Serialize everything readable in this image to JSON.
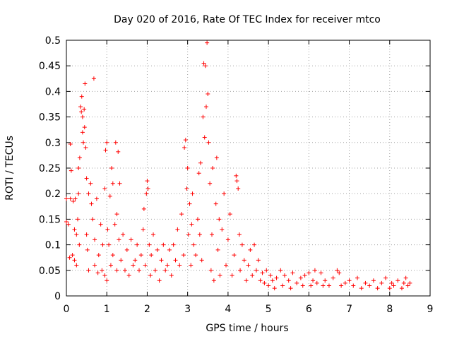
{
  "chart_data": {
    "type": "scatter",
    "title": "Day 020 of 2016, Rate Of TEC Index for receiver mtco",
    "xlabel": "GPS time / hours",
    "ylabel": "ROTI / TECUs",
    "xlim": [
      0,
      9
    ],
    "ylim": [
      0,
      0.5
    ],
    "xticks": [
      0,
      1,
      2,
      3,
      4,
      5,
      6,
      7,
      8,
      9
    ],
    "xtick_labels": [
      "0",
      "1",
      "2",
      "3",
      "4",
      "5",
      "6",
      "7",
      "8",
      "9"
    ],
    "yticks": [
      0,
      0.05,
      0.1,
      0.15,
      0.2,
      0.25,
      0.3,
      0.35,
      0.4,
      0.45,
      0.5
    ],
    "ytick_labels": [
      "0",
      "0.05",
      "0.1",
      "0.15",
      "0.2",
      "0.25",
      "0.3",
      "0.35",
      "0.4",
      "0.45",
      "0.5"
    ],
    "grid": true,
    "marker": "+",
    "color": "#ff0000",
    "series": [
      {
        "name": "ROTI",
        "points": [
          [
            0.0,
            0.19
          ],
          [
            0.0,
            0.145
          ],
          [
            0.05,
            0.14
          ],
          [
            0.08,
            0.075
          ],
          [
            0.1,
            0.297
          ],
          [
            0.1,
            0.19
          ],
          [
            0.12,
            0.245
          ],
          [
            0.15,
            0.08
          ],
          [
            0.17,
            0.185
          ],
          [
            0.2,
            0.07
          ],
          [
            0.2,
            0.13
          ],
          [
            0.22,
            0.19
          ],
          [
            0.25,
            0.12
          ],
          [
            0.25,
            0.06
          ],
          [
            0.28,
            0.15
          ],
          [
            0.3,
            0.2
          ],
          [
            0.3,
            0.25
          ],
          [
            0.32,
            0.1
          ],
          [
            0.33,
            0.27
          ],
          [
            0.35,
            0.37
          ],
          [
            0.37,
            0.36
          ],
          [
            0.38,
            0.39
          ],
          [
            0.4,
            0.32
          ],
          [
            0.4,
            0.35
          ],
          [
            0.42,
            0.3
          ],
          [
            0.44,
            0.365
          ],
          [
            0.45,
            0.33
          ],
          [
            0.46,
            0.415
          ],
          [
            0.48,
            0.29
          ],
          [
            0.5,
            0.23
          ],
          [
            0.5,
            0.12
          ],
          [
            0.52,
            0.09
          ],
          [
            0.55,
            0.2
          ],
          [
            0.55,
            0.05
          ],
          [
            0.6,
            0.22
          ],
          [
            0.62,
            0.18
          ],
          [
            0.65,
            0.15
          ],
          [
            0.68,
            0.425
          ],
          [
            0.7,
            0.11
          ],
          [
            0.7,
            0.06
          ],
          [
            0.75,
            0.19
          ],
          [
            0.78,
            0.045
          ],
          [
            0.8,
            0.08
          ],
          [
            0.85,
            0.14
          ],
          [
            0.88,
            0.05
          ],
          [
            0.9,
            0.1
          ],
          [
            0.95,
            0.21
          ],
          [
            0.95,
            0.04
          ],
          [
            0.97,
            0.285
          ],
          [
            1.0,
            0.3
          ],
          [
            1.0,
            0.03
          ],
          [
            1.02,
            0.13
          ],
          [
            1.05,
            0.1
          ],
          [
            1.08,
            0.195
          ],
          [
            1.1,
            0.06
          ],
          [
            1.12,
            0.25
          ],
          [
            1.15,
            0.22
          ],
          [
            1.15,
            0.08
          ],
          [
            1.2,
            0.14
          ],
          [
            1.22,
            0.3
          ],
          [
            1.25,
            0.16
          ],
          [
            1.25,
            0.05
          ],
          [
            1.28,
            0.282
          ],
          [
            1.3,
            0.11
          ],
          [
            1.32,
            0.22
          ],
          [
            1.35,
            0.07
          ],
          [
            1.4,
            0.12
          ],
          [
            1.45,
            0.05
          ],
          [
            1.5,
            0.09
          ],
          [
            1.55,
            0.04
          ],
          [
            1.6,
            0.11
          ],
          [
            1.65,
            0.06
          ],
          [
            1.7,
            0.07
          ],
          [
            1.75,
            0.1
          ],
          [
            1.8,
            0.05
          ],
          [
            1.85,
            0.08
          ],
          [
            1.9,
            0.13
          ],
          [
            1.92,
            0.17
          ],
          [
            1.95,
            0.06
          ],
          [
            1.98,
            0.2
          ],
          [
            2.0,
            0.225
          ],
          [
            2.02,
            0.21
          ],
          [
            2.05,
            0.1
          ],
          [
            2.08,
            0.04
          ],
          [
            2.1,
            0.08
          ],
          [
            2.15,
            0.12
          ],
          [
            2.2,
            0.05
          ],
          [
            2.25,
            0.09
          ],
          [
            2.3,
            0.03
          ],
          [
            2.35,
            0.07
          ],
          [
            2.4,
            0.1
          ],
          [
            2.45,
            0.05
          ],
          [
            2.5,
            0.06
          ],
          [
            2.55,
            0.09
          ],
          [
            2.6,
            0.04
          ],
          [
            2.65,
            0.1
          ],
          [
            2.7,
            0.07
          ],
          [
            2.75,
            0.13
          ],
          [
            2.8,
            0.06
          ],
          [
            2.85,
            0.16
          ],
          [
            2.9,
            0.08
          ],
          [
            2.92,
            0.29
          ],
          [
            2.95,
            0.305
          ],
          [
            2.98,
            0.21
          ],
          [
            3.0,
            0.25
          ],
          [
            3.02,
            0.12
          ],
          [
            3.05,
            0.18
          ],
          [
            3.08,
            0.06
          ],
          [
            3.1,
            0.14
          ],
          [
            3.12,
            0.2
          ],
          [
            3.15,
            0.1
          ],
          [
            3.2,
            0.08
          ],
          [
            3.25,
            0.15
          ],
          [
            3.28,
            0.24
          ],
          [
            3.3,
            0.12
          ],
          [
            3.32,
            0.26
          ],
          [
            3.35,
            0.07
          ],
          [
            3.38,
            0.35
          ],
          [
            3.4,
            0.455
          ],
          [
            3.42,
            0.31
          ],
          [
            3.44,
            0.45
          ],
          [
            3.46,
            0.37
          ],
          [
            3.48,
            0.495
          ],
          [
            3.5,
            0.395
          ],
          [
            3.52,
            0.3
          ],
          [
            3.55,
            0.22
          ],
          [
            3.58,
            0.05
          ],
          [
            3.6,
            0.12
          ],
          [
            3.62,
            0.25
          ],
          [
            3.65,
            0.03
          ],
          [
            3.7,
            0.18
          ],
          [
            3.72,
            0.27
          ],
          [
            3.75,
            0.09
          ],
          [
            3.78,
            0.15
          ],
          [
            3.8,
            0.04
          ],
          [
            3.85,
            0.13
          ],
          [
            3.9,
            0.2
          ],
          [
            3.95,
            0.06
          ],
          [
            4.0,
            0.11
          ],
          [
            4.05,
            0.16
          ],
          [
            4.1,
            0.04
          ],
          [
            4.15,
            0.08
          ],
          [
            4.2,
            0.235
          ],
          [
            4.22,
            0.225
          ],
          [
            4.25,
            0.21
          ],
          [
            4.28,
            0.12
          ],
          [
            4.3,
            0.05
          ],
          [
            4.35,
            0.1
          ],
          [
            4.4,
            0.07
          ],
          [
            4.45,
            0.03
          ],
          [
            4.5,
            0.06
          ],
          [
            4.55,
            0.09
          ],
          [
            4.6,
            0.04
          ],
          [
            4.65,
            0.1
          ],
          [
            4.7,
            0.05
          ],
          [
            4.75,
            0.07
          ],
          [
            4.8,
            0.03
          ],
          [
            4.85,
            0.045
          ],
          [
            4.9,
            0.025
          ],
          [
            4.95,
            0.05
          ],
          [
            5.0,
            0.02
          ],
          [
            5.05,
            0.04
          ],
          [
            5.1,
            0.03
          ],
          [
            5.15,
            0.015
          ],
          [
            5.2,
            0.035
          ],
          [
            5.3,
            0.05
          ],
          [
            5.35,
            0.02
          ],
          [
            5.4,
            0.04
          ],
          [
            5.5,
            0.03
          ],
          [
            5.55,
            0.015
          ],
          [
            5.6,
            0.045
          ],
          [
            5.7,
            0.025
          ],
          [
            5.8,
            0.035
          ],
          [
            5.85,
            0.02
          ],
          [
            5.9,
            0.04
          ],
          [
            6.0,
            0.045
          ],
          [
            6.05,
            0.02
          ],
          [
            6.1,
            0.03
          ],
          [
            6.15,
            0.05
          ],
          [
            6.2,
            0.025
          ],
          [
            6.3,
            0.045
          ],
          [
            6.35,
            0.02
          ],
          [
            6.4,
            0.03
          ],
          [
            6.5,
            0.02
          ],
          [
            6.6,
            0.035
          ],
          [
            6.7,
            0.05
          ],
          [
            6.75,
            0.045
          ],
          [
            6.8,
            0.02
          ],
          [
            6.9,
            0.025
          ],
          [
            7.0,
            0.03
          ],
          [
            7.1,
            0.02
          ],
          [
            7.2,
            0.035
          ],
          [
            7.3,
            0.015
          ],
          [
            7.4,
            0.025
          ],
          [
            7.5,
            0.02
          ],
          [
            7.6,
            0.03
          ],
          [
            7.7,
            0.015
          ],
          [
            7.8,
            0.025
          ],
          [
            7.9,
            0.035
          ],
          [
            8.0,
            0.015
          ],
          [
            8.05,
            0.025
          ],
          [
            8.1,
            0.02
          ],
          [
            8.2,
            0.03
          ],
          [
            8.3,
            0.015
          ],
          [
            8.35,
            0.025
          ],
          [
            8.4,
            0.035
          ],
          [
            8.45,
            0.02
          ],
          [
            8.5,
            0.025
          ]
        ]
      }
    ]
  }
}
